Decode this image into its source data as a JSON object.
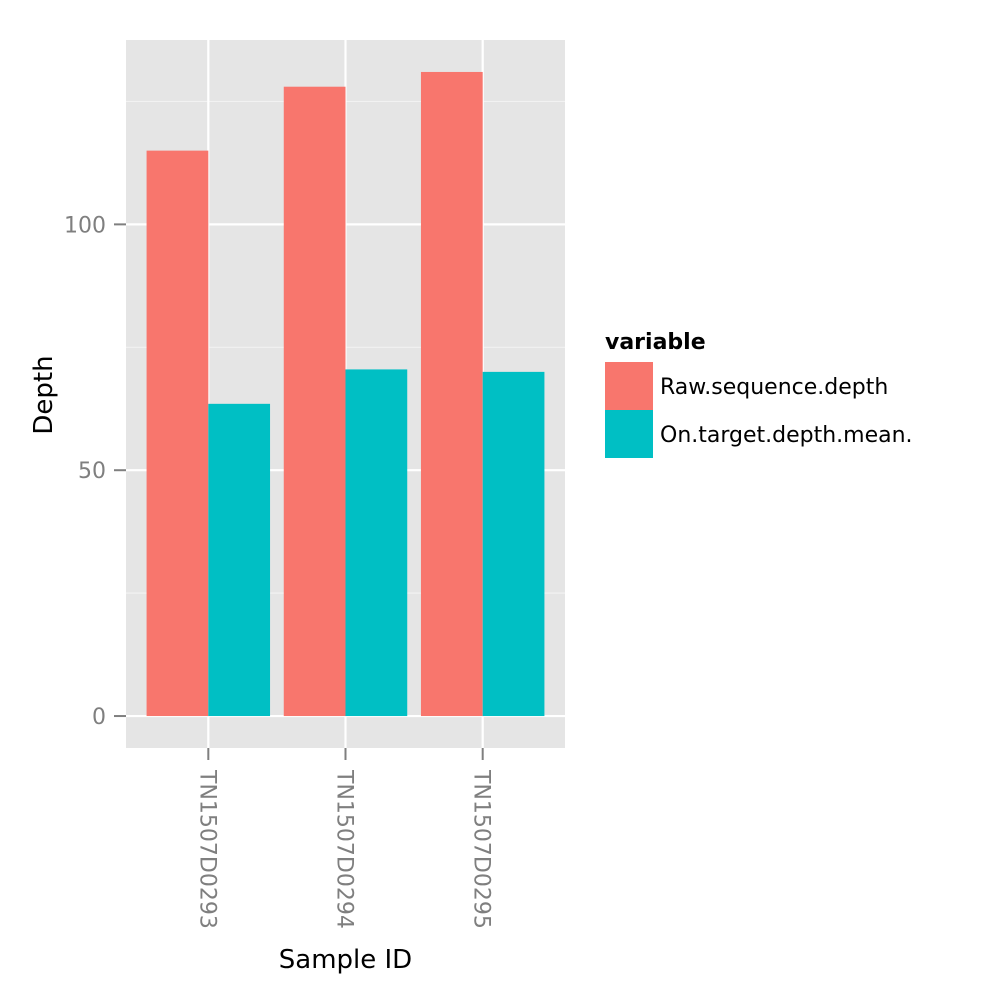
{
  "chart_data": {
    "type": "bar",
    "categories": [
      "TN1507D0293",
      "TN1507D0294",
      "TN1507D0295"
    ],
    "series": [
      {
        "name": "Raw.sequence.depth",
        "values": [
          115,
          128,
          131
        ],
        "color": "#F8766D"
      },
      {
        "name": "On.target.depth.mean.",
        "values": [
          63.5,
          70.5,
          70
        ],
        "color": "#00BFC4"
      }
    ],
    "xlabel": "Sample ID",
    "ylabel": "Depth",
    "ylim": [
      -6.5,
      137.5
    ],
    "y_ticks": [
      0,
      50,
      100
    ],
    "y_tick_labels": [
      "0",
      "50",
      "100"
    ],
    "legend": {
      "title": "variable",
      "placement": "right"
    },
    "grid": true,
    "panel_background": "#E5E5E5",
    "grid_color": "#FFFFFF"
  }
}
